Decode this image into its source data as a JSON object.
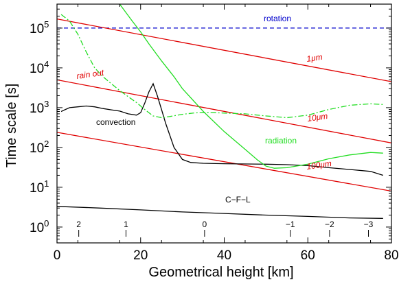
{
  "chart_data": {
    "type": "line",
    "xlabel": "Geometrical height [km]",
    "ylabel": "Time scale [s]",
    "xlim": [
      0,
      80
    ],
    "ylim": [
      0.4,
      400000
    ],
    "log_y": true,
    "grid": false,
    "x_ticks": [
      "0",
      "20",
      "40",
      "60",
      "80"
    ],
    "y_ticks": [
      {
        "base": "10",
        "exp": "0",
        "value": 1
      },
      {
        "base": "10",
        "exp": "1",
        "value": 10
      },
      {
        "base": "10",
        "exp": "2",
        "value": 100
      },
      {
        "base": "10",
        "exp": "3",
        "value": 1000
      },
      {
        "base": "10",
        "exp": "4",
        "value": 10000
      },
      {
        "base": "10",
        "exp": "5",
        "value": 100000
      }
    ],
    "log_pressure_markers": [
      {
        "label": "2",
        "x": 5.2
      },
      {
        "label": "1",
        "x": 16.5
      },
      {
        "label": "0",
        "x": 35.3
      },
      {
        "label": "−1",
        "x": 55.8
      },
      {
        "label": "−2",
        "x": 65.2
      },
      {
        "label": "−3",
        "x": 74.5
      }
    ],
    "annotations": {
      "rotation": {
        "text": "rotation",
        "color": "#0000cc"
      },
      "rain_out": {
        "text": "rain out",
        "color": "#e00000"
      },
      "um1": {
        "text": "1μm",
        "color": "#e00000"
      },
      "um10": {
        "text": "10μm",
        "color": "#e00000"
      },
      "um100": {
        "text": "100μm",
        "color": "#e00000"
      },
      "convection": {
        "text": "convection",
        "color": "#000000"
      },
      "radiation": {
        "text": "radiation",
        "color": "#22dd22"
      },
      "cfl": {
        "text": "C−F−L",
        "color": "#000000"
      }
    },
    "series": [
      {
        "key": "rotation",
        "color": "#0000cc",
        "dash": "dashed",
        "x": [
          0,
          80
        ],
        "y": [
          100000,
          100000
        ]
      },
      {
        "key": "um1",
        "color": "#e00000",
        "dash": "solid",
        "x": [
          0,
          80
        ],
        "y": [
          170000,
          4500
        ]
      },
      {
        "key": "um10",
        "color": "#e00000",
        "dash": "solid",
        "x": [
          0,
          80
        ],
        "y": [
          5000,
          130
        ]
      },
      {
        "key": "um100",
        "color": "#e00000",
        "dash": "solid",
        "x": [
          0,
          80
        ],
        "y": [
          240,
          8
        ]
      },
      {
        "key": "convection",
        "color": "#000000",
        "dash": "solid",
        "x": [
          1,
          2,
          3,
          5,
          7,
          9,
          11,
          13,
          15,
          17,
          19,
          20,
          21,
          22,
          23,
          24,
          25,
          26,
          27,
          28,
          30,
          32,
          35,
          40,
          50,
          55,
          60,
          65,
          70,
          75,
          78
        ],
        "y": [
          800,
          900,
          1000,
          1050,
          1100,
          1050,
          950,
          880,
          820,
          700,
          650,
          750,
          1300,
          2500,
          4000,
          2000,
          900,
          400,
          200,
          100,
          50,
          42,
          40,
          39,
          38,
          37,
          35,
          31,
          28,
          25,
          20
        ]
      },
      {
        "key": "radiation",
        "color": "#22dd22",
        "dash": "solid",
        "x": [
          15,
          18,
          20,
          22,
          25,
          28,
          30,
          35,
          40,
          45,
          48,
          50,
          52,
          55,
          60,
          65,
          70,
          75,
          78
        ],
        "y": [
          400000,
          150000,
          80000,
          40000,
          15000,
          6000,
          3000,
          800,
          250,
          90,
          48,
          34,
          30,
          31,
          38,
          52,
          65,
          75,
          72
        ]
      },
      {
        "key": "radiation_dashdot",
        "color": "#22dd22",
        "dash": "dashdot",
        "x": [
          1,
          3,
          5,
          7,
          9,
          11,
          13,
          15,
          17,
          19,
          21,
          23,
          25,
          27,
          30,
          33,
          36,
          40,
          45,
          50,
          55,
          60,
          65,
          70,
          75,
          78
        ],
        "y": [
          220000,
          150000,
          70000,
          25000,
          10000,
          6000,
          4000,
          2700,
          1900,
          1350,
          900,
          620,
          560,
          600,
          680,
          740,
          760,
          730,
          700,
          620,
          560,
          650,
          900,
          1150,
          1250,
          1200
        ]
      },
      {
        "key": "cfl",
        "color": "#000000",
        "dash": "solid",
        "x": [
          0,
          10,
          20,
          30,
          40,
          50,
          60,
          70,
          78
        ],
        "y": [
          3.3,
          3.0,
          2.7,
          2.4,
          2.2,
          2.0,
          1.85,
          1.7,
          1.65
        ]
      }
    ]
  }
}
